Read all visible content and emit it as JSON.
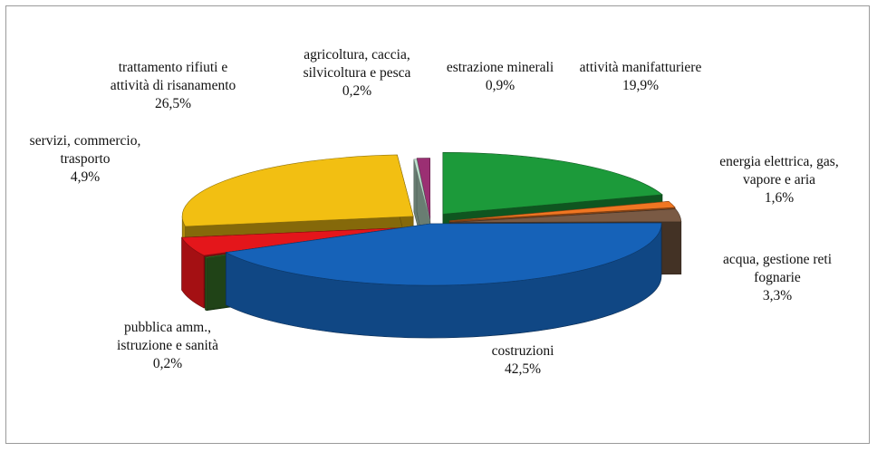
{
  "chart_data": {
    "type": "pie",
    "title": "",
    "legend": "none",
    "categories": [
      "agricoltura, caccia, silvicoltura e pesca",
      "estrazione minerali",
      "attività manifatturiere",
      "energia elettrica, gas, vapore e aria",
      "acqua, gestione reti fognarie",
      "costruzioni",
      "pubblica amm., istruzione e sanità",
      "servizi, commercio, trasporto",
      "trattamento rifiuti e attività di risanamento"
    ],
    "values": [
      0.2,
      0.9,
      19.9,
      1.6,
      3.3,
      42.5,
      0.2,
      4.9,
      26.5
    ],
    "value_labels": [
      "0,2%",
      "0,9%",
      "19,9%",
      "1,6%",
      "3,3%",
      "42,5%",
      "0,2%",
      "4,9%",
      "26,5%"
    ],
    "label_lines": [
      [
        "agricoltura, caccia,",
        "silvicoltura e pesca",
        "0,2%"
      ],
      [
        "estrazione minerali",
        "0,9%"
      ],
      [
        "attività manifatturiere",
        "19,9%"
      ],
      [
        "energia elettrica, gas,",
        "vapore e aria",
        "1,6%"
      ],
      [
        "acqua, gestione reti",
        "fognarie",
        "3,3%"
      ],
      [
        "costruzioni",
        "42,5%"
      ],
      [
        "pubblica amm.,",
        "istruzione e sanità",
        "0,2%"
      ],
      [
        "servizi, commercio,",
        "trasporto",
        "4,9%"
      ],
      [
        "trattamento rifiuti e",
        "attività di risanamento",
        "26,5%"
      ]
    ],
    "colors": [
      "#bfe3d0",
      "#9b2f73",
      "#1c9a3a",
      "#f07622",
      "#7a5a44",
      "#1662b8",
      "#3a7a2a",
      "#e4161b",
      "#f2bf12"
    ]
  }
}
